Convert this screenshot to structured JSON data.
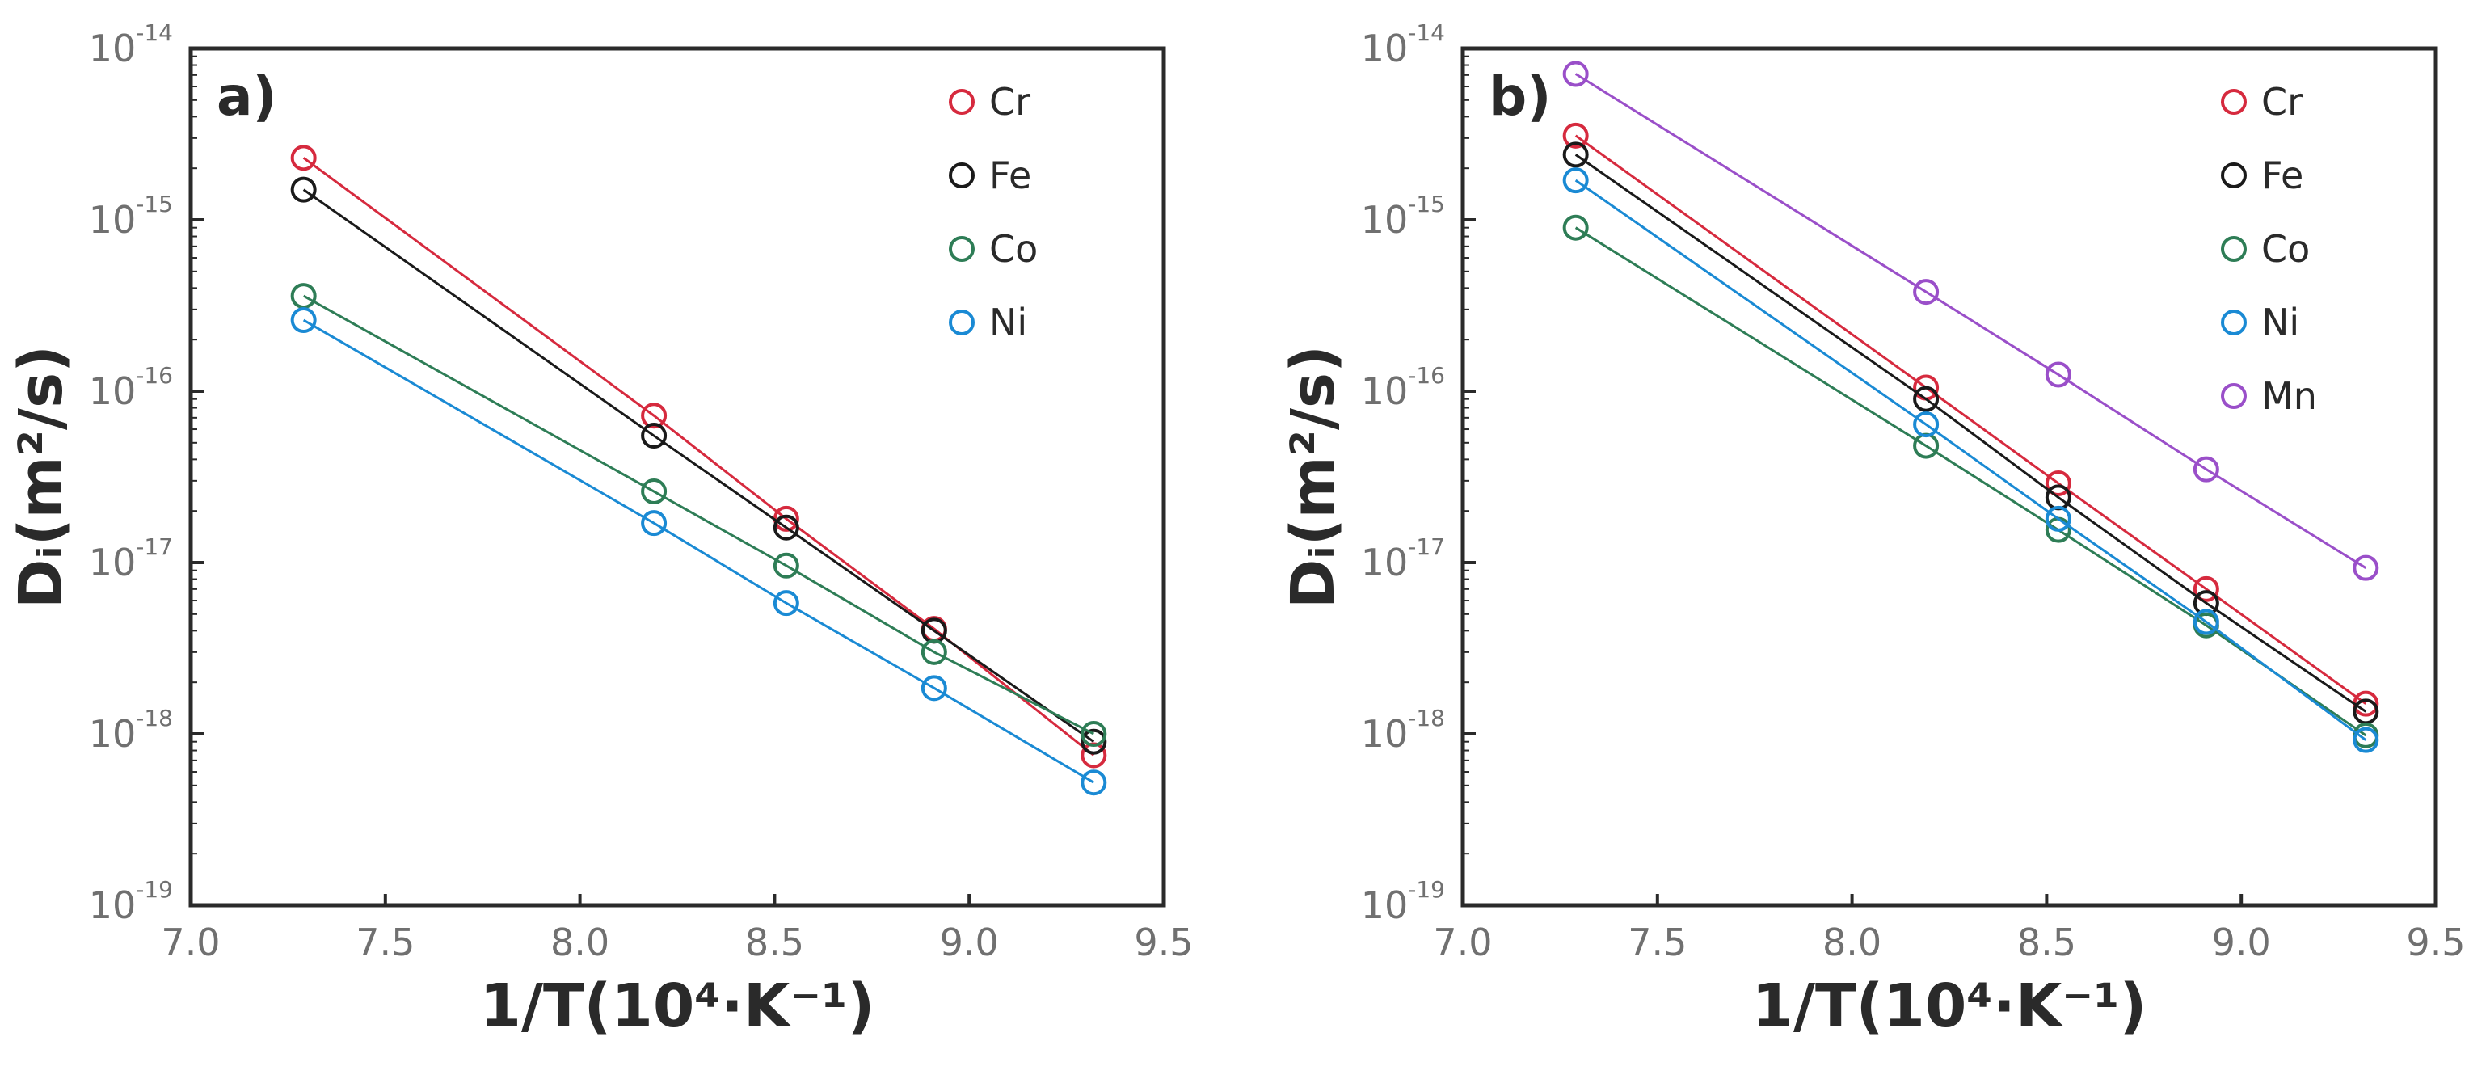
{
  "chart_data": [
    {
      "type": "scatter",
      "panel_label": "a)",
      "xlabel": "1/T(10⁴·K⁻¹)",
      "ylabel": "Dᵢ(m²/s)",
      "xlim": [
        7.0,
        9.5
      ],
      "ylim_log10": [
        -19,
        -14
      ],
      "yscale": "log",
      "x_ticks": [
        "7.0",
        "7.5",
        "8.0",
        "8.5",
        "9.0",
        "9.5"
      ],
      "y_tick_exponents": [
        "-14",
        "-15",
        "-16",
        "-17",
        "-18",
        "-19"
      ],
      "y_tick_base": "10",
      "legend_position": "top-right",
      "x": [
        7.29,
        8.19,
        8.53,
        8.91,
        9.32
      ],
      "series": [
        {
          "name": "Cr",
          "color": "#d62a3e",
          "values": [
            2.3e-15,
            7.2e-17,
            1.8e-17,
            4.1e-18,
            7.5e-19
          ]
        },
        {
          "name": "Fe",
          "color": "#1a1a1a",
          "values": [
            1.5e-15,
            5.5e-17,
            1.6e-17,
            4e-18,
            9e-19
          ]
        },
        {
          "name": "Co",
          "color": "#2e7d56",
          "values": [
            3.6e-16,
            2.6e-17,
            9.6e-18,
            3e-18,
            1e-18
          ]
        },
        {
          "name": "Ni",
          "color": "#1a8ad4",
          "values": [
            2.6e-16,
            1.7e-17,
            5.8e-18,
            1.85e-18,
            5.2e-19
          ]
        }
      ]
    },
    {
      "type": "scatter",
      "panel_label": "b)",
      "xlabel": "1/T(10⁴·K⁻¹)",
      "ylabel": "Dᵢ(m²/s)",
      "xlim": [
        7.0,
        9.5
      ],
      "ylim_log10": [
        -19,
        -14
      ],
      "yscale": "log",
      "x_ticks": [
        "7.0",
        "7.5",
        "8.0",
        "8.5",
        "9.0",
        "9.5"
      ],
      "y_tick_exponents": [
        "-14",
        "-15",
        "-16",
        "-17",
        "-18",
        "-19"
      ],
      "y_tick_base": "10",
      "legend_position": "top-right",
      "x": [
        7.29,
        8.19,
        8.53,
        8.91,
        9.32
      ],
      "series": [
        {
          "name": "Cr",
          "color": "#d62a3e",
          "values": [
            3.1e-15,
            1.05e-16,
            2.9e-17,
            7e-18,
            1.5e-18
          ]
        },
        {
          "name": "Fe",
          "color": "#1a1a1a",
          "values": [
            2.4e-15,
            9e-17,
            2.4e-17,
            5.8e-18,
            1.35e-18
          ]
        },
        {
          "name": "Co",
          "color": "#2e7d56",
          "values": [
            9e-16,
            4.8e-17,
            1.55e-17,
            4.3e-18,
            9.8e-19
          ]
        },
        {
          "name": "Ni",
          "color": "#1a8ad4",
          "values": [
            1.7e-15,
            6.4e-17,
            1.8e-17,
            4.5e-18,
            9.2e-19
          ]
        },
        {
          "name": "Mn",
          "color": "#9a4fc9",
          "values": [
            7.1e-15,
            3.8e-16,
            1.25e-16,
            3.5e-17,
            9.3e-18
          ]
        }
      ]
    }
  ]
}
